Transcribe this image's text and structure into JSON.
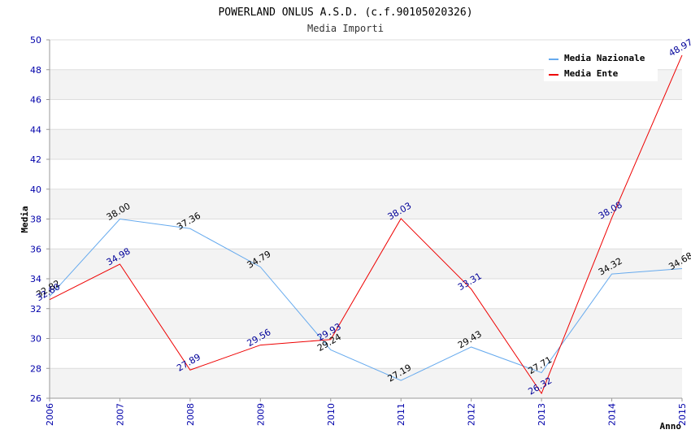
{
  "chart_data": {
    "type": "line",
    "title": "POWERLAND ONLUS A.S.D. (c.f.90105020326)",
    "subtitle": "Media Importi",
    "xlabel": "Anno",
    "ylabel": "Media",
    "categories": [
      "2006",
      "2007",
      "2008",
      "2009",
      "2010",
      "2011",
      "2012",
      "2013",
      "2014",
      "2015"
    ],
    "y_ticks": [
      "26",
      "28",
      "30",
      "32",
      "34",
      "36",
      "38",
      "40",
      "42",
      "44",
      "46",
      "48",
      "50"
    ],
    "ylim": [
      26,
      50
    ],
    "grid": true,
    "legend_position": "top-right",
    "series": [
      {
        "name": "Media Nazionale",
        "color": "#66aaee",
        "label_color": "#000000",
        "values": [
          32.82,
          38.0,
          37.36,
          34.79,
          29.24,
          27.19,
          29.43,
          27.71,
          34.32,
          34.68
        ],
        "labels": [
          "32.82",
          "38.00",
          "37.36",
          "34.79",
          "29.24",
          "27.19",
          "29.43",
          "27.71",
          "34.32",
          "34.68"
        ]
      },
      {
        "name": "Media Ente",
        "color": "#ee0000",
        "label_color": "#000099",
        "values": [
          32.6,
          34.98,
          27.89,
          29.56,
          29.93,
          38.03,
          33.31,
          26.32,
          38.08,
          48.97
        ],
        "labels": [
          "32.60",
          "34.98",
          "27.89",
          "29.56",
          "29.93",
          "38.03",
          "33.31",
          "26.32",
          "38.08",
          "48.97"
        ]
      }
    ]
  }
}
